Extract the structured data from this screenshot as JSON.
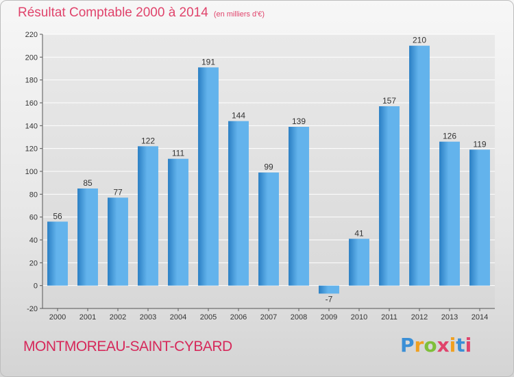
{
  "header": {
    "title": "Résultat Comptable 2000 à 2014",
    "unit": "(en milliers d'€)"
  },
  "footer": {
    "city": "MONTMOREAU-SAINT-CYBARD",
    "logo": "Proxiti",
    "logo_colors": [
      "#3a8fd6",
      "#f0a020",
      "#7fbf3a",
      "#e0436b",
      "#f0a020",
      "#3a8fd6",
      "#e0436b"
    ]
  },
  "colors": {
    "bar_light": "#63b3ec",
    "bar_dark": "#2a7fc4",
    "grid": "#ffffff",
    "axis_text": "#333333"
  },
  "chart_data": {
    "type": "bar",
    "categories": [
      "2000",
      "2001",
      "2002",
      "2003",
      "2004",
      "2005",
      "2006",
      "2007",
      "2008",
      "2009",
      "2010",
      "2011",
      "2012",
      "2013",
      "2014"
    ],
    "values": [
      56,
      85,
      77,
      122,
      111,
      191,
      144,
      99,
      139,
      -7,
      41,
      157,
      210,
      126,
      119
    ],
    "ylim": [
      -20,
      220
    ],
    "yticks": [
      -20,
      0,
      20,
      40,
      60,
      80,
      100,
      120,
      140,
      160,
      180,
      200,
      220
    ],
    "grid": true,
    "title": "Résultat Comptable 2000 à 2014",
    "xlabel": "",
    "ylabel": ""
  }
}
